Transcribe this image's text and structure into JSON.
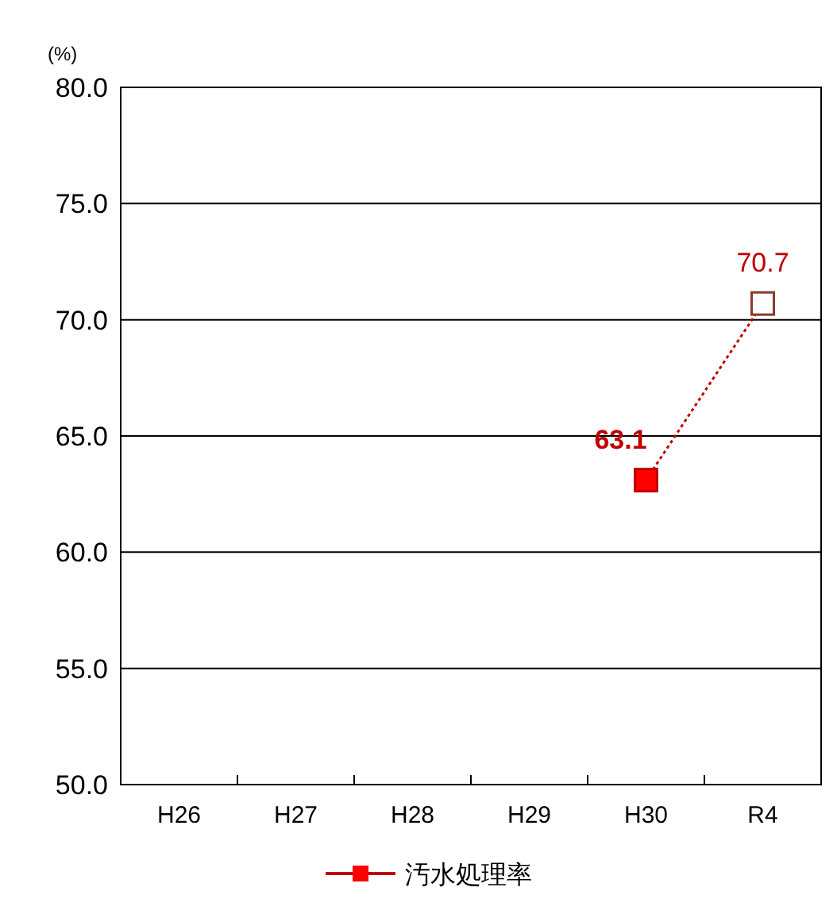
{
  "chart_data": {
    "type": "line",
    "ylabel": "(%)",
    "categories": [
      "H26",
      "H27",
      "H28",
      "H29",
      "H30",
      "R4"
    ],
    "series": [
      {
        "name": "汚水処理率",
        "color": "#c00000",
        "colors": [
          null,
          null,
          null,
          null,
          "#ff0000",
          "#ffffff"
        ],
        "values": [
          null,
          null,
          null,
          null,
          63.1,
          70.7
        ]
      }
    ],
    "ylim": [
      50,
      80
    ],
    "yticks": [
      {
        "value": 50,
        "label": "50.0"
      },
      {
        "value": 55,
        "label": "55.0"
      },
      {
        "value": 60,
        "label": "60.0"
      },
      {
        "value": 65,
        "label": "65.0"
      },
      {
        "value": 70,
        "label": "70.0"
      },
      {
        "value": 75,
        "label": "75.0"
      },
      {
        "value": 80,
        "label": "80.0"
      }
    ],
    "grid": "y",
    "marker": "square",
    "line_style": "dotted",
    "data_labels": true,
    "legend": "bottom"
  }
}
